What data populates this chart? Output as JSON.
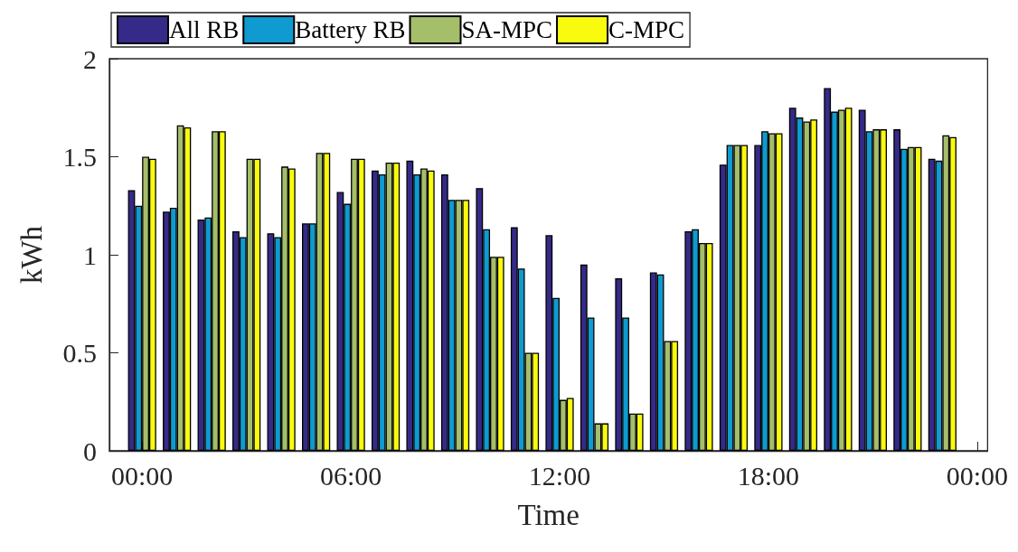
{
  "chart_data": {
    "type": "bar",
    "xlabel": "Time",
    "ylabel": "kWh",
    "x": [
      0,
      1,
      2,
      3,
      4,
      5,
      6,
      7,
      8,
      9,
      10,
      11,
      12,
      13,
      14,
      15,
      16,
      17,
      18,
      19,
      20,
      21,
      22,
      23
    ],
    "xlim": [
      -0.94,
      24.3
    ],
    "xticks": [
      {
        "value": 0,
        "label": "00:00"
      },
      {
        "value": 6,
        "label": "06:00"
      },
      {
        "value": 12,
        "label": "12:00"
      },
      {
        "value": 18,
        "label": "18:00"
      },
      {
        "value": 24,
        "label": "00:00"
      }
    ],
    "ylim": [
      0,
      2
    ],
    "yticks": [
      0,
      0.5,
      1,
      1.5,
      2
    ],
    "series": [
      {
        "name": "All RB",
        "color": "#352a87",
        "values": [
          1.33,
          1.22,
          1.18,
          1.12,
          1.11,
          1.16,
          1.32,
          1.43,
          1.48,
          1.41,
          1.34,
          1.14,
          1.1,
          0.95,
          0.88,
          0.91,
          1.12,
          1.46,
          1.56,
          1.75,
          1.85,
          1.74,
          1.64,
          1.49
        ]
      },
      {
        "name": "Battery RB",
        "color": "#0f9ad0",
        "values": [
          1.25,
          1.24,
          1.19,
          1.09,
          1.09,
          1.16,
          1.26,
          1.41,
          1.41,
          1.28,
          1.13,
          0.93,
          0.78,
          0.68,
          0.68,
          0.9,
          1.13,
          1.56,
          1.63,
          1.7,
          1.73,
          1.63,
          1.54,
          1.48
        ]
      },
      {
        "name": "SA-MPC",
        "color": "#a5be6a",
        "values": [
          1.5,
          1.66,
          1.63,
          1.49,
          1.45,
          1.52,
          1.49,
          1.47,
          1.44,
          1.28,
          0.99,
          0.5,
          0.26,
          0.14,
          0.19,
          0.56,
          1.06,
          1.56,
          1.62,
          1.68,
          1.74,
          1.64,
          1.55,
          1.61
        ]
      },
      {
        "name": "C-MPC",
        "color": "#f9fb0e",
        "values": [
          1.49,
          1.65,
          1.63,
          1.49,
          1.44,
          1.52,
          1.49,
          1.47,
          1.43,
          1.28,
          0.99,
          0.5,
          0.27,
          0.14,
          0.19,
          0.56,
          1.06,
          1.56,
          1.62,
          1.69,
          1.75,
          1.64,
          1.55,
          1.6
        ]
      }
    ],
    "legend": "top left",
    "grid": false
  }
}
